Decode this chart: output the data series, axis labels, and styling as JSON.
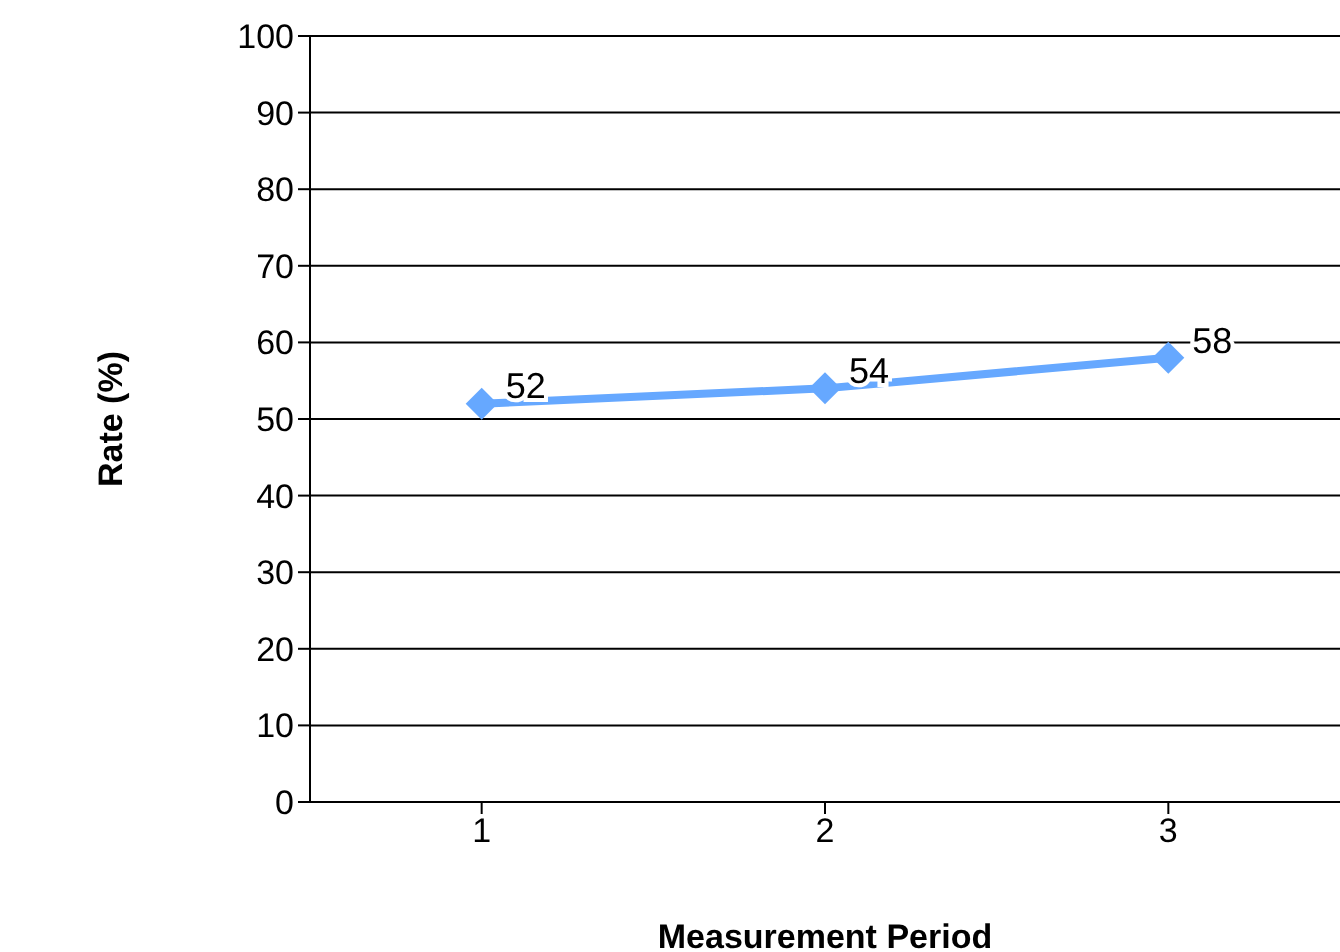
{
  "chart_data": {
    "type": "line",
    "xlabel": "Measurement Period",
    "ylabel": "Rate (%)",
    "categories": [
      "1",
      "2",
      "3"
    ],
    "series": [
      {
        "color": "#66a8ff",
        "values": [
          52,
          54,
          58
        ]
      }
    ],
    "ylim": [
      0,
      100
    ],
    "yticks": [
      0,
      10,
      20,
      30,
      40,
      50,
      60,
      70,
      80,
      90,
      100
    ],
    "grid": "y",
    "marker": "diamond",
    "line_style": "solid",
    "data_labels": true
  }
}
